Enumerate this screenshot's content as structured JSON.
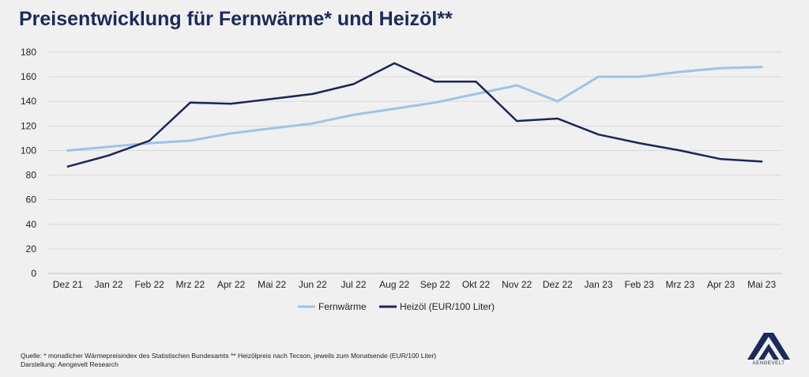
{
  "title": "Preisentwicklung für Fernwärme* und Heizöl**",
  "chart_data": {
    "type": "line",
    "categories": [
      "Dez 21",
      "Jan 22",
      "Feb 22",
      "Mrz 22",
      "Apr 22",
      "Mai 22",
      "Jun 22",
      "Jul 22",
      "Aug 22",
      "Sep 22",
      "Okt 22",
      "Nov 22",
      "Dez 22",
      "Jan 23",
      "Feb 23",
      "Mrz 23",
      "Apr 23",
      "Mai 23"
    ],
    "ylim": [
      0,
      180
    ],
    "yticks": [
      0,
      20,
      40,
      60,
      80,
      100,
      120,
      140,
      160,
      180
    ],
    "grid": true,
    "legend_position": "bottom",
    "series": [
      {
        "name": "Fernwärme",
        "color": "#9dc3e6",
        "values": [
          100,
          103,
          106,
          108,
          114,
          118,
          122,
          129,
          134,
          139,
          146,
          153,
          140,
          160,
          160,
          164,
          167,
          168
        ]
      },
      {
        "name": "Heizöl (EUR/100 Liter)",
        "color": "#1b2558",
        "values": [
          87,
          96,
          108,
          139,
          138,
          142,
          146,
          154,
          171,
          156,
          156,
          124,
          126,
          113,
          106,
          100,
          93,
          91
        ]
      }
    ]
  },
  "footer": {
    "source": "Quelle: * monatlicher Wärmepreisindex des Statistischen Bundesamts  ** Heizölpreis nach Tecson, jeweils zum Monatsende (EUR/100 Liter)",
    "credit": "Darstellung: Aengevelt Research"
  },
  "logo": {
    "text": "AENGEVELT",
    "icon": "aengevelt-logo-icon",
    "color": "#1b2a5a"
  }
}
